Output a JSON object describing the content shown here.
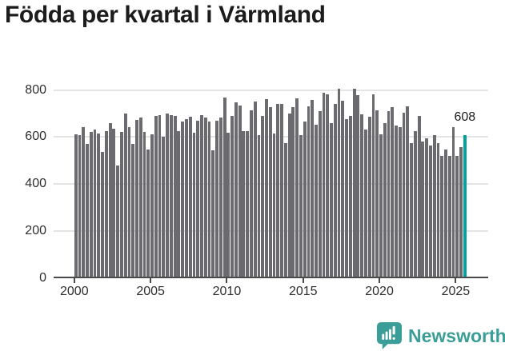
{
  "page": {
    "title": "Födda per kvartal i Värmland"
  },
  "footer": {
    "brand": "Newsworthy",
    "brand_color": "#3b9d97"
  },
  "colors": {
    "bar_default": "#6a6a6f",
    "bar_highlight": "#00a29e",
    "gridline": "#e4e4e4",
    "axis_line": "#4a4a4a",
    "text": "#2e2e2e",
    "title_text": "#1c1c1c"
  },
  "chart_data": {
    "type": "bar",
    "title": "Födda per kvartal i Värmland",
    "xlabel": "",
    "ylabel": "",
    "x_start_quarter": "2000-Q1",
    "x_end_quarter": "2025-Q3",
    "x_tick_years": [
      2000,
      2005,
      2010,
      2015,
      2020,
      2025
    ],
    "y_ticks": [
      0,
      200,
      400,
      600,
      800
    ],
    "ylim": [
      0,
      830
    ],
    "grid": true,
    "legend": "none",
    "series": [
      {
        "name": "Födda per kvartal",
        "values": [
          611,
          608,
          642,
          571,
          622,
          631,
          616,
          538,
          627,
          660,
          635,
          480,
          622,
          699,
          642,
          570,
          674,
          685,
          621,
          548,
          611,
          689,
          694,
          600,
          701,
          695,
          690,
          625,
          667,
          675,
          687,
          617,
          670,
          695,
          682,
          666,
          542,
          670,
          682,
          768,
          620,
          690,
          748,
          736,
          625,
          625,
          713,
          753,
          607,
          691,
          762,
          728,
          616,
          742,
          741,
          575,
          700,
          727,
          764,
          610,
          668,
          732,
          759,
          652,
          709,
          789,
          781,
          661,
          741,
          806,
          755,
          677,
          689,
          806,
          780,
          698,
          632,
          686,
          783,
          715,
          612,
          658,
          709,
          728,
          650,
          641,
          703,
          732,
          573,
          626,
          689,
          581,
          595,
          564,
          607,
          576,
          520,
          548,
          520,
          644,
          520,
          558,
          608
        ]
      }
    ],
    "highlight": {
      "index": 102,
      "quarter": "2025-Q3",
      "value": 608,
      "label": "608"
    }
  }
}
